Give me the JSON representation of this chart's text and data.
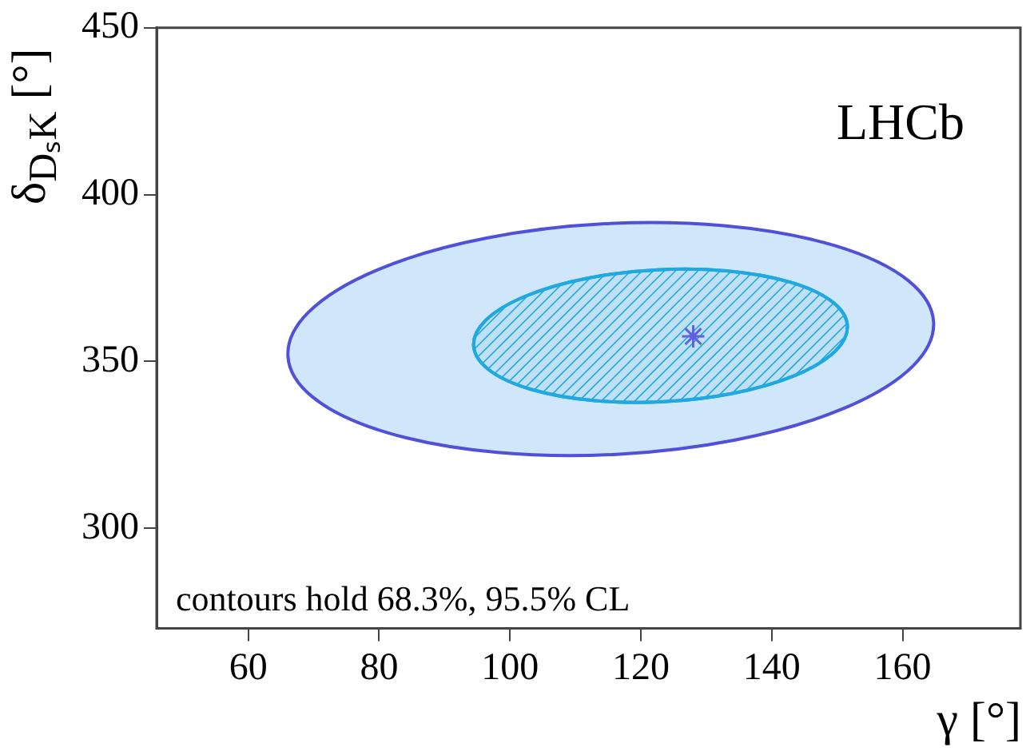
{
  "chart_data": {
    "type": "scatter",
    "xlabel": "γ [°]",
    "ylabel": "δ$_{DₛK}$ [°]",
    "xlim": [
      46,
      178
    ],
    "xticks": [
      60,
      80,
      100,
      120,
      140,
      160
    ],
    "ylim": [
      270,
      450
    ],
    "yticks": [
      300,
      350,
      400,
      450
    ],
    "grid": false,
    "legend": false,
    "annotations": [
      "LHCb",
      "contours hold 68.3%, 95.5% CL"
    ],
    "series": [
      {
        "type": "scatter",
        "color": "#6060e0",
        "marker": "cross",
        "x": [
          128
        ],
        "values": [
          357.5
        ]
      }
    ]
  }
}
